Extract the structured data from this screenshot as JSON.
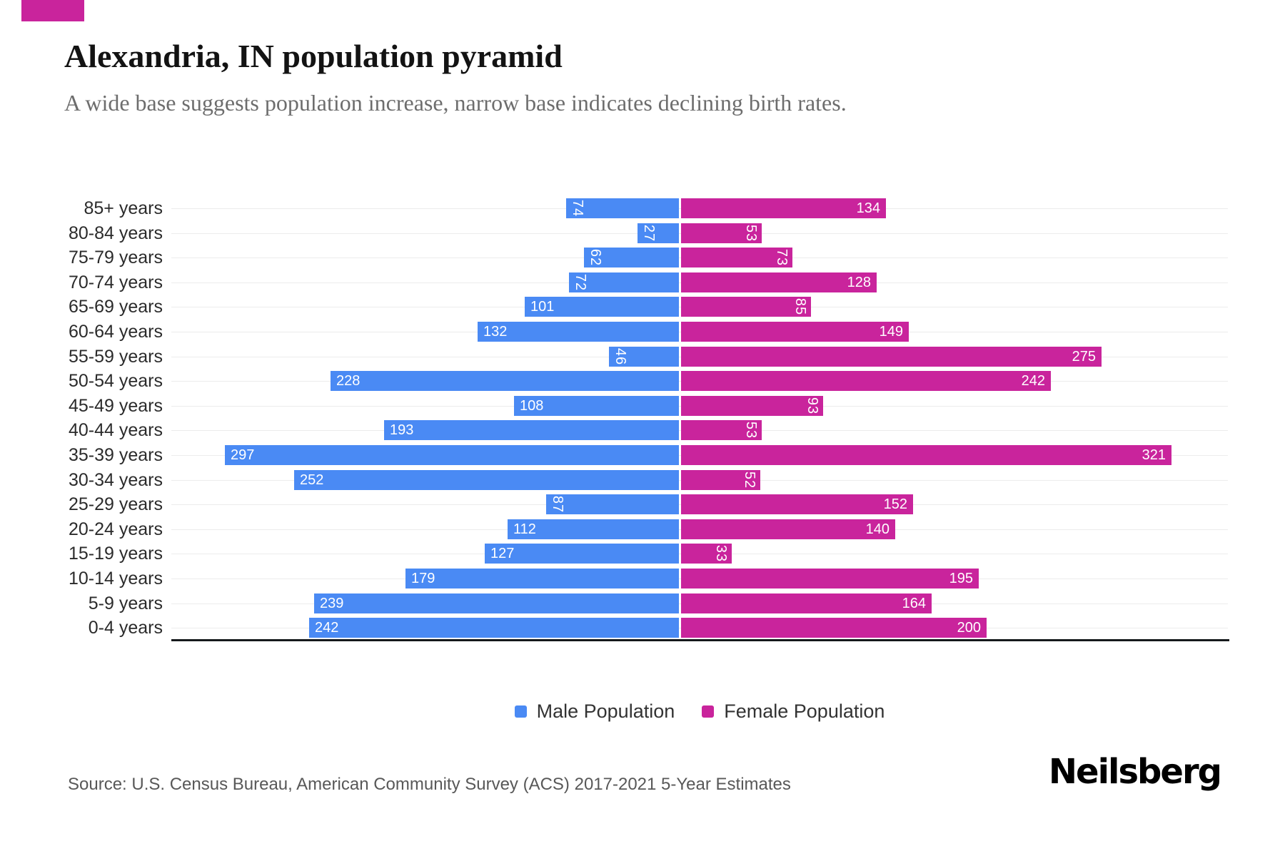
{
  "accent": {
    "corner_color": "#c9249c"
  },
  "header": {
    "title": "Alexandria, IN population pyramid",
    "subtitle": "A wide base suggests population increase, narrow base indicates declining birth rates."
  },
  "chart_data": {
    "type": "bar",
    "orientation": "horizontal-diverging-pyramid",
    "title": "Alexandria, IN population pyramid",
    "categories": [
      "85+ years",
      "80-84 years",
      "75-79 years",
      "70-74 years",
      "65-69 years",
      "60-64 years",
      "55-59 years",
      "50-54 years",
      "45-49 years",
      "40-44 years",
      "35-39 years",
      "30-34 years",
      "25-29 years",
      "20-24 years",
      "15-19 years",
      "10-14 years",
      "5-9 years",
      "0-4 years"
    ],
    "series": [
      {
        "name": "Male Population",
        "side": "left",
        "color": "#4a8af4",
        "values": [
          74,
          27,
          62,
          72,
          101,
          132,
          46,
          228,
          108,
          193,
          297,
          252,
          87,
          112,
          127,
          179,
          239,
          242
        ]
      },
      {
        "name": "Female Population",
        "side": "right",
        "color": "#c9249c",
        "values": [
          134,
          53,
          73,
          128,
          85,
          149,
          275,
          242,
          93,
          53,
          321,
          52,
          152,
          140,
          33,
          195,
          164,
          200
        ]
      }
    ],
    "value_labels": "inside-far-end, white, rotated 90deg when value < 100",
    "value_label_rotation_threshold": 100,
    "grid": true,
    "gridline_color": "#ececec",
    "legend_position": "bottom-center",
    "baseline_axis": "bottom"
  },
  "footer": {
    "source": "Source: U.S. Census Bureau, American Community Survey (ACS) 2017-2021 5-Year Estimates",
    "brand": "Neilsberg"
  }
}
